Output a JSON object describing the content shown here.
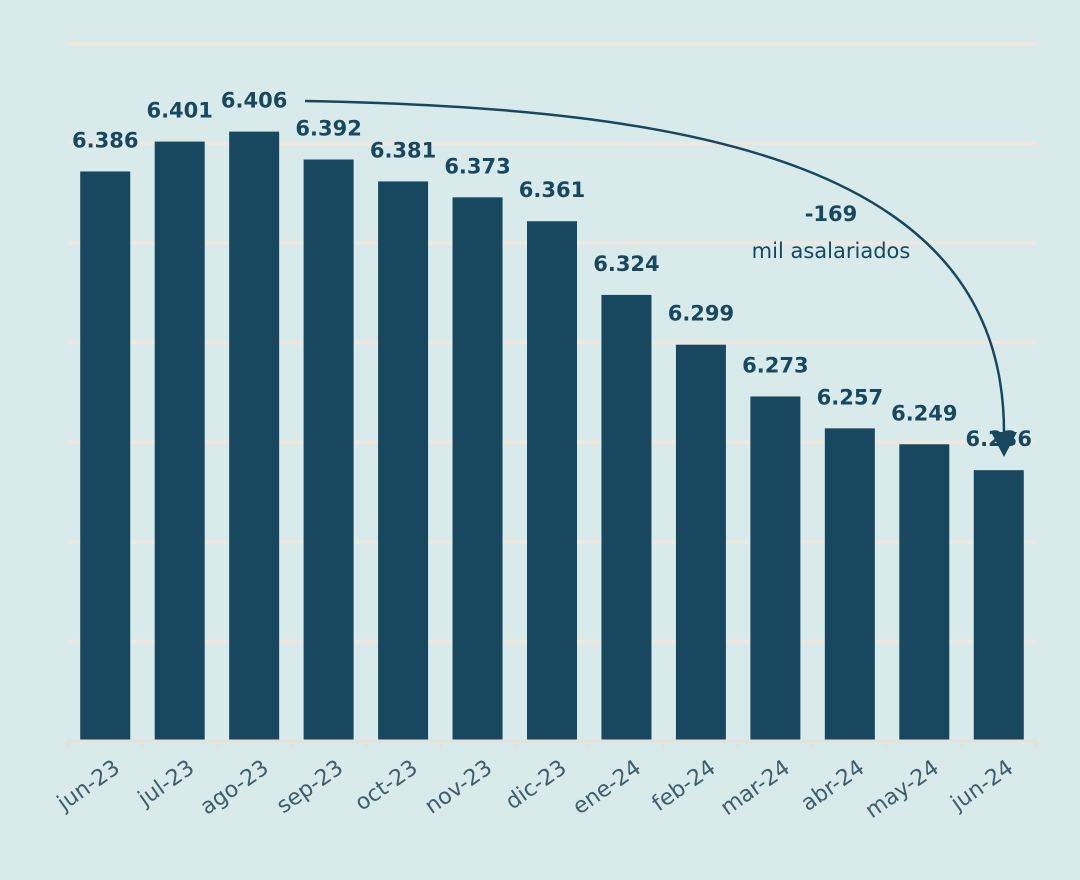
{
  "chart_data": {
    "type": "bar",
    "categories": [
      "jun-23",
      "jul-23",
      "ago-23",
      "sep-23",
      "oct-23",
      "nov-23",
      "dic-23",
      "ene-24",
      "feb-24",
      "mar-24",
      "abr-24",
      "may-24",
      "jun-24"
    ],
    "values": [
      6386,
      6401,
      6406,
      6392,
      6381,
      6373,
      6361,
      6324,
      6299,
      6273,
      6257,
      6249,
      6236
    ],
    "value_labels": [
      "6.386",
      "6.401",
      "6.406",
      "6.392",
      "6.381",
      "6.373",
      "6.361",
      "6.324",
      "6.299",
      "6.273",
      "6.257",
      "6.249",
      "6.236"
    ],
    "ylim": [
      6100,
      6450
    ],
    "grid": true,
    "colors": {
      "bar": "#17485f",
      "background": "#d8eaea",
      "grid": "#ece7df"
    },
    "annotation": {
      "value": "-169",
      "text": "mil asalariados",
      "from": "ago-23",
      "to": "jun-24"
    }
  }
}
